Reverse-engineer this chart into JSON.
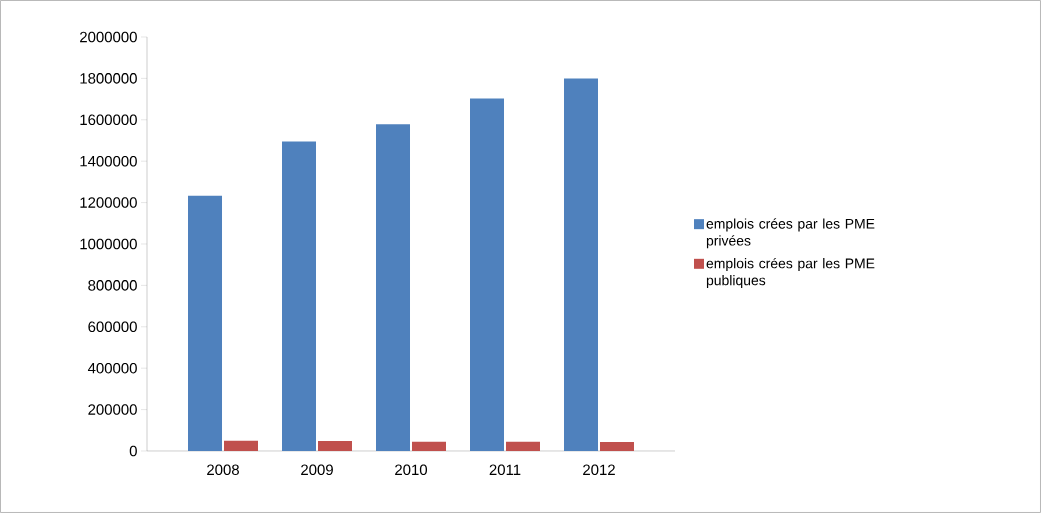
{
  "chart_data": {
    "type": "bar",
    "categories": [
      "2008",
      "2009",
      "2010",
      "2011",
      "2012"
    ],
    "series": [
      {
        "name": "emplois crées par les PME privées",
        "color": "#4f81bd",
        "values": [
          1233000,
          1495000,
          1578000,
          1703000,
          1800000
        ]
      },
      {
        "name": "emplois crées par les PME publiques",
        "color": "#c0504d",
        "values": [
          50000,
          48000,
          45000,
          45000,
          43000
        ]
      }
    ],
    "ylim": [
      0,
      2000000
    ],
    "yticks": [
      0,
      200000,
      400000,
      600000,
      800000,
      1000000,
      1200000,
      1400000,
      1600000,
      1800000,
      2000000
    ],
    "grid": false,
    "legend": "right"
  }
}
